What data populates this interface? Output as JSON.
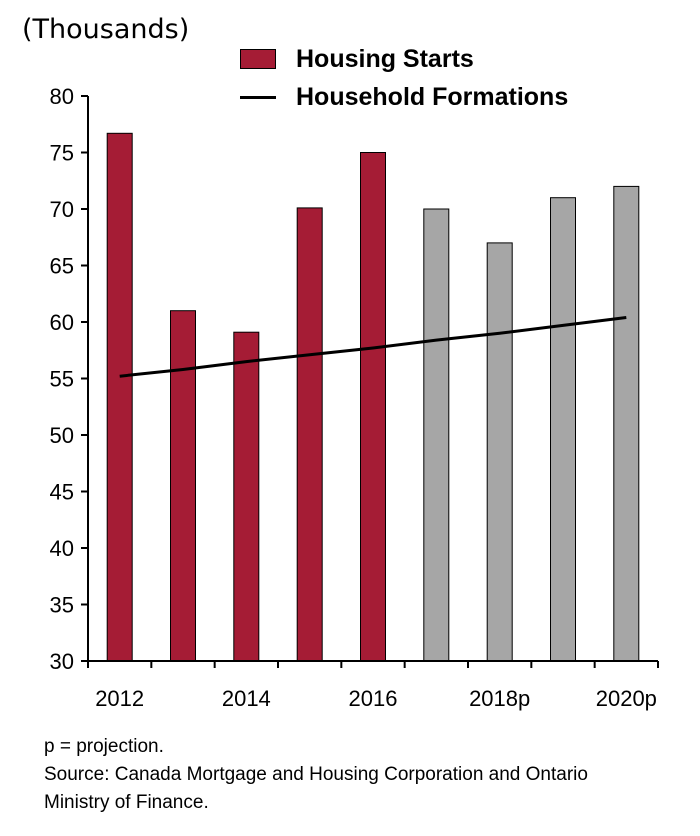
{
  "units_label": "(Thousands)",
  "legend": {
    "bars_label": "Housing Starts",
    "line_label": "Household Formations"
  },
  "notes": {
    "projection": "p = projection.",
    "source": "Source: Canada Mortgage and Housing Corporation and Ontario",
    "source_cont": "Ministry of Finance."
  },
  "colors": {
    "actual_bar": "#a51c35",
    "projected_bar": "#a6a6a6",
    "line": "#000000"
  },
  "chart_data": {
    "type": "bar",
    "categories": [
      "2012",
      "2013",
      "2014",
      "2015",
      "2016",
      "2017",
      "2018p",
      "2019",
      "2020p"
    ],
    "x_tick_labels": [
      "2012",
      "",
      "2014",
      "",
      "2016",
      "",
      "2018p",
      "",
      "2020p"
    ],
    "series": [
      {
        "name": "Housing Starts",
        "type": "bar",
        "values": [
          76.7,
          61.0,
          59.1,
          70.1,
          75.0,
          70.0,
          67.0,
          71.0,
          72.0
        ],
        "projected": [
          false,
          false,
          false,
          false,
          false,
          true,
          true,
          true,
          true
        ]
      },
      {
        "name": "Household Formations",
        "type": "line",
        "values": [
          55.2,
          55.8,
          56.5,
          57.1,
          57.7,
          58.4,
          59.0,
          59.7,
          60.4
        ]
      }
    ],
    "ylim": [
      30,
      80
    ],
    "yticks": [
      30,
      35,
      40,
      45,
      50,
      55,
      60,
      65,
      70,
      75,
      80
    ],
    "grid": false,
    "legend_position": "top"
  }
}
